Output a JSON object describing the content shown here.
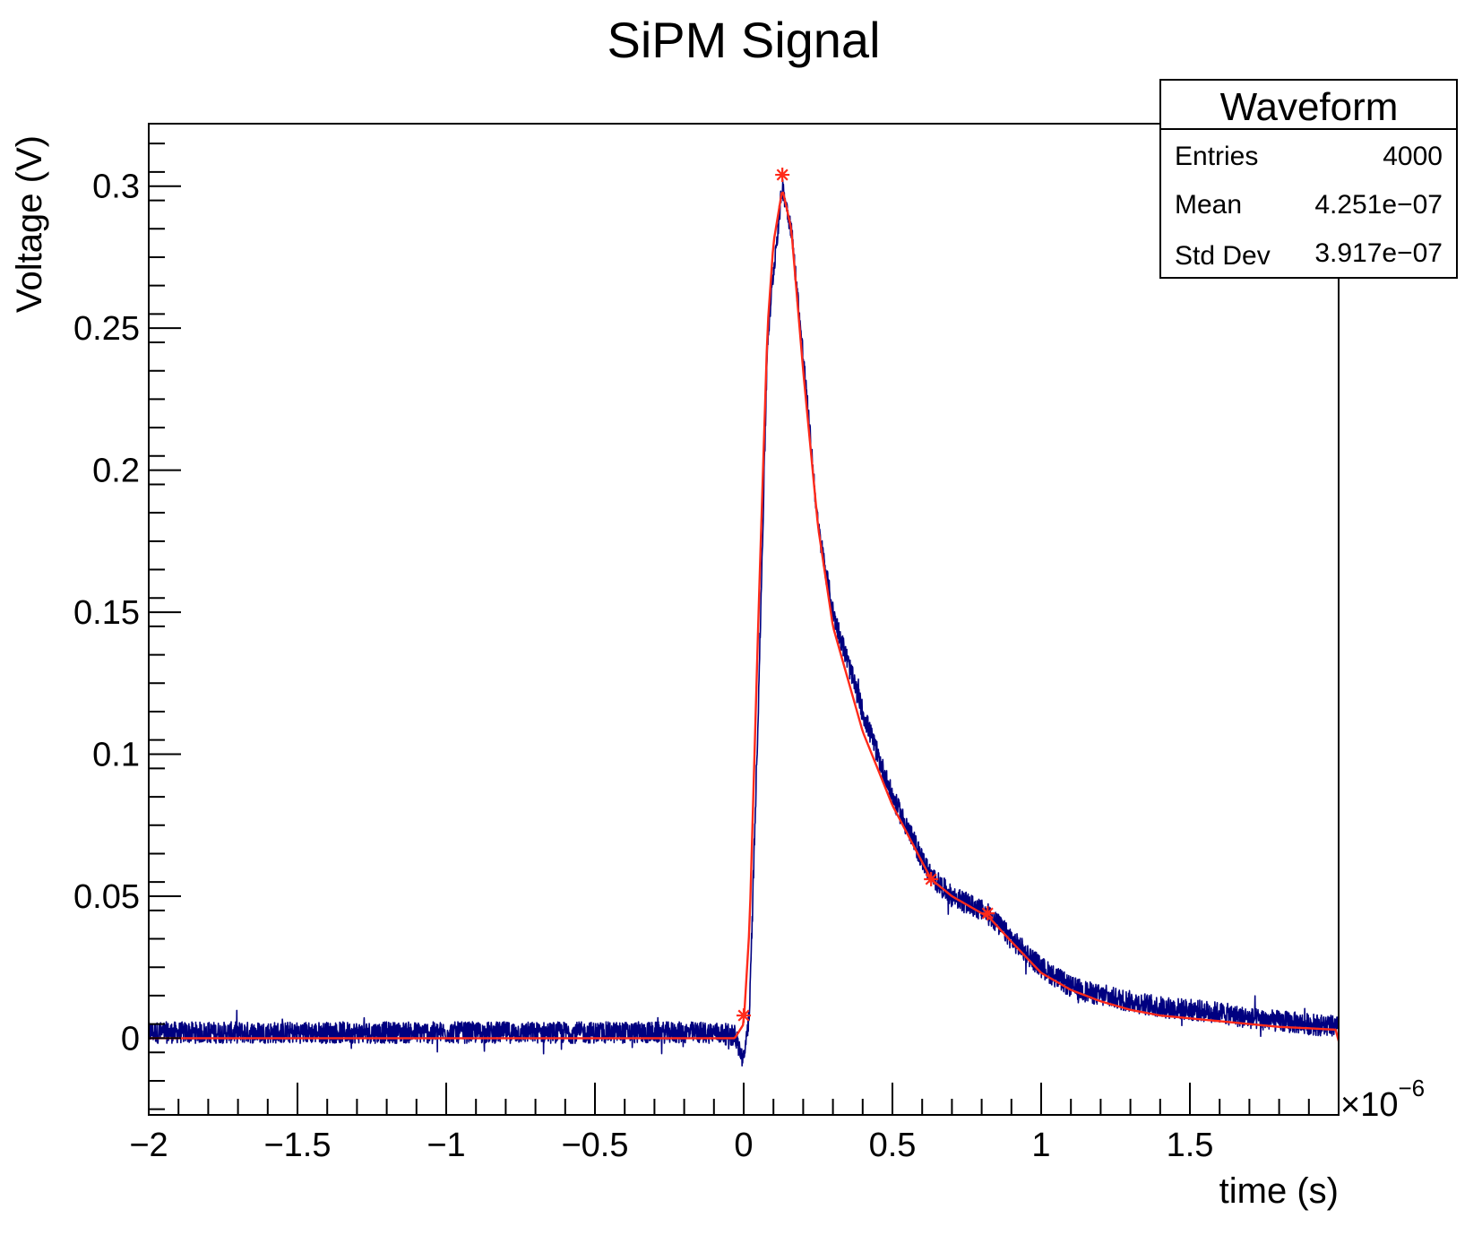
{
  "chart_data": {
    "type": "line",
    "title": "SiPM Signal",
    "xlabel": "time (s)",
    "ylabel": "Voltage (V)",
    "x_exponent_label": "×10",
    "x_exponent_power": "−6",
    "xlim": [
      -2.0,
      2.0
    ],
    "ylim": [
      -0.027,
      0.322
    ],
    "x_ticks": [
      {
        "value": -2.0,
        "label": "−2"
      },
      {
        "value": -1.5,
        "label": "−1.5"
      },
      {
        "value": -1.0,
        "label": "−1"
      },
      {
        "value": -0.5,
        "label": "−0.5"
      },
      {
        "value": 0.0,
        "label": "0"
      },
      {
        "value": 0.5,
        "label": "0.5"
      },
      {
        "value": 1.0,
        "label": "1"
      },
      {
        "value": 1.5,
        "label": "1.5"
      }
    ],
    "y_ticks": [
      {
        "value": 0.0,
        "label": "0"
      },
      {
        "value": 0.05,
        "label": "0.05"
      },
      {
        "value": 0.1,
        "label": "0.1"
      },
      {
        "value": 0.15,
        "label": "0.15"
      },
      {
        "value": 0.2,
        "label": "0.2"
      },
      {
        "value": 0.25,
        "label": "0.25"
      },
      {
        "value": 0.3,
        "label": "0.3"
      }
    ],
    "grid": false,
    "colors": {
      "data": "#000080",
      "fit": "#ff2a1a",
      "markers": "#ff2a1a",
      "axes": "#000000"
    },
    "series": [
      {
        "name": "Waveform",
        "style": "noisy-waveform",
        "x": [
          -2.0,
          -1.5,
          -1.0,
          -0.5,
          -0.1,
          -0.03,
          0.0,
          0.02,
          0.05,
          0.08,
          0.1,
          0.13,
          0.16,
          0.2,
          0.25,
          0.3,
          0.4,
          0.5,
          0.6,
          0.63,
          0.7,
          0.8,
          0.83,
          0.9,
          1.0,
          1.1,
          1.2,
          1.3,
          1.4,
          1.5,
          1.6,
          1.7,
          1.8,
          1.9,
          2.0
        ],
        "y": [
          0.002,
          0.002,
          0.002,
          0.002,
          0.002,
          0.001,
          -0.008,
          0.01,
          0.12,
          0.245,
          0.27,
          0.3,
          0.285,
          0.24,
          0.18,
          0.15,
          0.115,
          0.085,
          0.063,
          0.057,
          0.05,
          0.045,
          0.043,
          0.035,
          0.025,
          0.018,
          0.015,
          0.013,
          0.011,
          0.01,
          0.009,
          0.007,
          0.006,
          0.005,
          0.004
        ]
      },
      {
        "name": "",
        "style": "fit",
        "x": [
          -2.0,
          -1.5,
          -1.0,
          -0.5,
          -0.1,
          -0.03,
          0.0,
          0.02,
          0.05,
          0.08,
          0.1,
          0.13,
          0.16,
          0.2,
          0.25,
          0.3,
          0.4,
          0.5,
          0.6,
          0.63,
          0.7,
          0.8,
          0.83,
          0.9,
          1.0,
          1.1,
          1.2,
          1.3,
          1.4,
          1.5,
          1.6,
          1.7,
          1.8,
          1.9,
          1.99,
          2.0
        ],
        "y": [
          0.0,
          0.0,
          0.0,
          0.0,
          0.0,
          0.0,
          0.005,
          0.04,
          0.15,
          0.25,
          0.28,
          0.299,
          0.285,
          0.235,
          0.18,
          0.145,
          0.108,
          0.082,
          0.062,
          0.056,
          0.05,
          0.044,
          0.042,
          0.034,
          0.023,
          0.017,
          0.013,
          0.01,
          0.008,
          0.007,
          0.006,
          0.005,
          0.004,
          0.0035,
          0.003,
          -0.001
        ]
      }
    ],
    "markers": [
      {
        "x": 0.0,
        "y": 0.008
      },
      {
        "x": 0.13,
        "y": 0.304
      },
      {
        "x": 0.63,
        "y": 0.056
      },
      {
        "x": 0.82,
        "y": 0.044
      }
    ],
    "legend": {
      "placement": "top-right",
      "title": "Waveform",
      "rows": [
        {
          "label": "Entries",
          "value": "4000"
        },
        {
          "label": "Mean",
          "value": "4.251e−07"
        },
        {
          "label": "Std Dev",
          "value": "3.917e−07"
        }
      ]
    }
  }
}
